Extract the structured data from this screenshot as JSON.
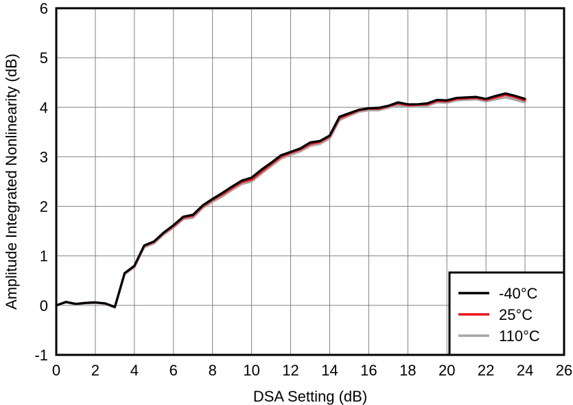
{
  "chart_data": {
    "type": "line",
    "xlabel": "DSA Setting (dB)",
    "ylabel": "Amplitude Integrated Nonlinearity (dB)",
    "xlim": [
      0,
      26
    ],
    "ylim": [
      -1,
      6
    ],
    "xticks": [
      0,
      2,
      4,
      6,
      8,
      10,
      12,
      14,
      16,
      18,
      20,
      22,
      24,
      26
    ],
    "yticks": [
      -1,
      0,
      1,
      2,
      3,
      4,
      5,
      6
    ],
    "grid": true,
    "legend_position": "bottom-right",
    "x": [
      0,
      0.5,
      1,
      1.5,
      2,
      2.5,
      3,
      3.5,
      4,
      4.5,
      5,
      5.5,
      6,
      6.5,
      7,
      7.5,
      8,
      8.5,
      9,
      9.5,
      10,
      10.5,
      11,
      11.5,
      12,
      12.5,
      13,
      13.5,
      14,
      14.5,
      15,
      15.5,
      16,
      16.5,
      17,
      17.5,
      18,
      18.5,
      19,
      19.5,
      20,
      20.5,
      21,
      21.5,
      22,
      22.5,
      23,
      23.5,
      24
    ],
    "series": [
      {
        "name": "-40°C",
        "color": "#000000",
        "values": [
          0.0,
          0.07,
          0.03,
          0.05,
          0.06,
          0.04,
          -0.03,
          0.65,
          0.8,
          1.21,
          1.29,
          1.47,
          1.62,
          1.79,
          1.83,
          2.02,
          2.15,
          2.27,
          2.4,
          2.52,
          2.58,
          2.74,
          2.88,
          3.03,
          3.1,
          3.17,
          3.29,
          3.32,
          3.43,
          3.81,
          3.88,
          3.95,
          3.98,
          3.99,
          4.03,
          4.1,
          4.06,
          4.06,
          4.08,
          4.15,
          4.14,
          4.19,
          4.2,
          4.21,
          4.17,
          4.23,
          4.28,
          4.23,
          4.17
        ]
      },
      {
        "name": "25°C",
        "color": "#e8141b",
        "values": [
          0.0,
          0.07,
          0.03,
          0.05,
          0.06,
          0.04,
          -0.03,
          0.65,
          0.79,
          1.2,
          1.28,
          1.46,
          1.6,
          1.77,
          1.81,
          2.0,
          2.13,
          2.24,
          2.37,
          2.49,
          2.54,
          2.7,
          2.85,
          3.0,
          3.08,
          3.15,
          3.26,
          3.3,
          3.41,
          3.78,
          3.86,
          3.94,
          3.97,
          3.97,
          4.02,
          4.08,
          4.04,
          4.05,
          4.06,
          4.13,
          4.12,
          4.17,
          4.18,
          4.19,
          4.15,
          4.2,
          4.25,
          4.2,
          4.14
        ]
      },
      {
        "name": "110°C",
        "color": "#a6a6a6",
        "values": [
          0.0,
          0.06,
          0.02,
          0.04,
          0.05,
          0.03,
          -0.05,
          0.63,
          0.77,
          1.17,
          1.25,
          1.43,
          1.57,
          1.74,
          1.77,
          1.97,
          2.09,
          2.2,
          2.33,
          2.45,
          2.5,
          2.66,
          2.81,
          2.96,
          3.04,
          3.11,
          3.22,
          3.26,
          3.37,
          3.74,
          3.83,
          3.91,
          3.94,
          3.94,
          3.99,
          4.04,
          4.01,
          4.02,
          4.03,
          4.1,
          4.09,
          4.14,
          4.15,
          4.16,
          4.12,
          4.16,
          4.2,
          4.15,
          4.1
        ]
      }
    ]
  }
}
